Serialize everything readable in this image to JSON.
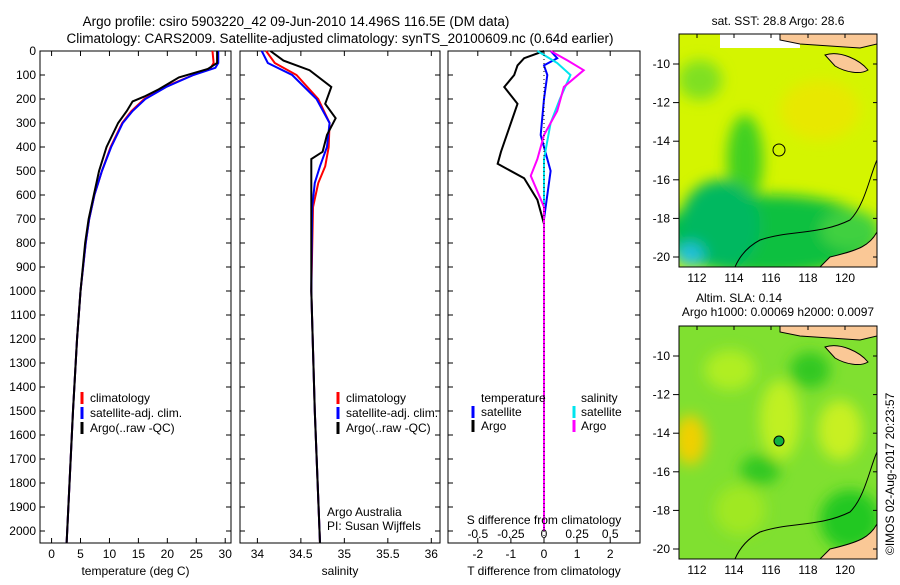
{
  "title_line1": "Argo profile: csiro 5903220_42 09-Jun-2010 14.496S 116.5E (DM data)",
  "title_line2": "Climatology: CARS2009. Satellite-adjusted climatology: synTS_20100609.nc (0.64d earlier)",
  "colors": {
    "climatology": "#ff0000",
    "satellite": "#0000ff",
    "argo": "#000000",
    "sal_satellite": "#00e5ee",
    "sal_argo": "#ff00ff"
  },
  "chart_data": [
    {
      "type": "line",
      "name": "temperature",
      "xlabel": "temperature (deg C)",
      "ylabel": "",
      "xlim": [
        -2,
        31
      ],
      "ylim": [
        2050,
        0
      ],
      "xticks": [
        0,
        5,
        10,
        15,
        20,
        25,
        30
      ],
      "yticks": [
        0,
        100,
        200,
        300,
        400,
        500,
        600,
        700,
        800,
        900,
        1000,
        1100,
        1200,
        1300,
        1400,
        1500,
        1600,
        1700,
        1800,
        1900,
        2000
      ],
      "legend": [
        "climatology",
        "satellite-adj. clim.",
        "Argo(..raw -QC)"
      ],
      "legend_position": "lower-center",
      "series": [
        {
          "name": "climatology",
          "color": "#ff0000",
          "points": [
            [
              27.8,
              0
            ],
            [
              28,
              50
            ],
            [
              27.5,
              70
            ],
            [
              24.5,
              100
            ],
            [
              19.5,
              150
            ],
            [
              16,
              200
            ],
            [
              13.8,
              250
            ],
            [
              12.2,
              300
            ],
            [
              10.2,
              400
            ],
            [
              8.7,
              500
            ],
            [
              7.4,
              600
            ],
            [
              6.5,
              700
            ],
            [
              5.9,
              800
            ],
            [
              5.0,
              1000
            ],
            [
              4.4,
              1200
            ],
            [
              3.7,
              1500
            ],
            [
              3.1,
              1800
            ],
            [
              2.6,
              2050
            ]
          ]
        },
        {
          "name": "satellite-adj. clim.",
          "color": "#0000ff",
          "points": [
            [
              28.8,
              0
            ],
            [
              28.8,
              50
            ],
            [
              28.3,
              70
            ],
            [
              24.5,
              100
            ],
            [
              19.8,
              150
            ],
            [
              16.2,
              200
            ],
            [
              14,
              250
            ],
            [
              12.3,
              300
            ],
            [
              10.3,
              400
            ],
            [
              8.7,
              500
            ],
            [
              7.4,
              600
            ],
            [
              6.5,
              700
            ],
            [
              5.9,
              800
            ],
            [
              5.0,
              1000
            ],
            [
              4.4,
              1200
            ],
            [
              3.7,
              1500
            ],
            [
              3.1,
              1800
            ],
            [
              2.6,
              2050
            ]
          ]
        },
        {
          "name": "Argo(..raw -QC)",
          "color": "#000000",
          "points": [
            [
              28.6,
              0
            ],
            [
              28.6,
              50
            ],
            [
              27,
              75
            ],
            [
              22,
              110
            ],
            [
              18.5,
              160
            ],
            [
              16,
              190
            ],
            [
              14,
              210
            ],
            [
              13,
              250
            ],
            [
              11.5,
              300
            ],
            [
              9.5,
              400
            ],
            [
              8.2,
              500
            ],
            [
              7.3,
              600
            ],
            [
              6.4,
              700
            ],
            [
              5.8,
              800
            ],
            [
              5.0,
              1000
            ],
            [
              4.4,
              1200
            ],
            [
              3.7,
              1500
            ],
            [
              3.1,
              1800
            ],
            [
              2.6,
              2050
            ]
          ]
        }
      ]
    },
    {
      "type": "line",
      "name": "salinity",
      "xlabel": "salinity",
      "xlim": [
        33.8,
        36.1
      ],
      "ylim": [
        2050,
        0
      ],
      "xticks": [
        34,
        34.5,
        35,
        35.5,
        36
      ],
      "legend": [
        "climatology",
        "satellite-adj. clim.",
        "Argo(..raw -QC)"
      ],
      "annotation": [
        "Argo Australia",
        "PI: Susan Wijffels"
      ],
      "series": [
        {
          "name": "climatology",
          "color": "#ff0000",
          "points": [
            [
              34.1,
              0
            ],
            [
              34.2,
              50
            ],
            [
              34.45,
              100
            ],
            [
              34.7,
              200
            ],
            [
              34.83,
              300
            ],
            [
              34.82,
              400
            ],
            [
              34.78,
              480
            ],
            [
              34.7,
              550
            ],
            [
              34.64,
              650
            ],
            [
              34.62,
              1000
            ],
            [
              34.66,
              1500
            ],
            [
              34.72,
              2050
            ]
          ]
        },
        {
          "name": "satellite-adj. clim.",
          "color": "#0000ff",
          "points": [
            [
              34.05,
              0
            ],
            [
              34.12,
              50
            ],
            [
              34.4,
              100
            ],
            [
              34.68,
              200
            ],
            [
              34.83,
              300
            ],
            [
              34.8,
              400
            ],
            [
              34.72,
              480
            ],
            [
              34.66,
              550
            ],
            [
              34.63,
              650
            ],
            [
              34.62,
              1000
            ],
            [
              34.66,
              1500
            ],
            [
              34.72,
              2050
            ]
          ]
        },
        {
          "name": "Argo(..raw -QC)",
          "color": "#000000",
          "points": [
            [
              34.15,
              0
            ],
            [
              34.3,
              40
            ],
            [
              34.6,
              80
            ],
            [
              34.85,
              150
            ],
            [
              34.78,
              220
            ],
            [
              34.9,
              280
            ],
            [
              34.8,
              350
            ],
            [
              34.75,
              420
            ],
            [
              34.62,
              450
            ],
            [
              34.62,
              600
            ],
            [
              34.62,
              1000
            ],
            [
              34.66,
              1500
            ],
            [
              34.72,
              2050
            ]
          ]
        }
      ]
    },
    {
      "type": "line",
      "name": "difference",
      "xlabel": "T difference from climatology",
      "x2label": "S difference from climatology",
      "xlim": [
        -2.9,
        2.9
      ],
      "x2lim": [
        -0.725,
        0.725
      ],
      "ylim": [
        2050,
        0
      ],
      "xticks": [
        -2,
        -1,
        0,
        1,
        2
      ],
      "x2ticks": [
        -0.5,
        -0.25,
        0,
        0.25,
        0.5
      ],
      "x2ticklabels": [
        "-0.5",
        "-0.25",
        "0",
        "0.25",
        "0.5"
      ],
      "legend_temperature": {
        "title": "temperature",
        "items": [
          "satellite",
          "Argo"
        ]
      },
      "legend_salinity": {
        "title": "salinity",
        "items": [
          "satellite",
          "Argo"
        ]
      },
      "series": [
        {
          "name": "T satellite",
          "axis": "T",
          "color": "#0000ff",
          "points": [
            [
              0.2,
              0
            ],
            [
              0.4,
              30
            ],
            [
              0,
              60
            ],
            [
              0.1,
              100
            ],
            [
              0,
              200
            ],
            [
              -0.1,
              350
            ],
            [
              0.2,
              500
            ],
            [
              0,
              700
            ],
            [
              0,
              2000
            ]
          ]
        },
        {
          "name": "T Argo",
          "axis": "T",
          "color": "#000000",
          "points": [
            [
              0,
              0
            ],
            [
              -0.6,
              30
            ],
            [
              -0.8,
              60
            ],
            [
              -0.9,
              100
            ],
            [
              -1.2,
              150
            ],
            [
              -0.8,
              220
            ],
            [
              -1.0,
              300
            ],
            [
              -1.2,
              380
            ],
            [
              -1.3,
              420
            ],
            [
              -1.4,
              470
            ],
            [
              -0.6,
              530
            ],
            [
              -0.2,
              620
            ],
            [
              0,
              720
            ],
            [
              0,
              2000
            ]
          ]
        },
        {
          "name": "S satellite",
          "axis": "S",
          "color": "#00e5ee",
          "points": [
            [
              -0.05,
              0
            ],
            [
              0.1,
              50
            ],
            [
              0.2,
              100
            ],
            [
              0.12,
              200
            ],
            [
              0.05,
              300
            ],
            [
              0,
              450
            ],
            [
              0,
              2000
            ]
          ]
        },
        {
          "name": "S Argo",
          "axis": "S",
          "color": "#ff00ff",
          "points": [
            [
              0.05,
              0
            ],
            [
              0.18,
              40
            ],
            [
              0.3,
              80
            ],
            [
              0.15,
              150
            ],
            [
              0.1,
              250
            ],
            [
              0,
              350
            ],
            [
              -0.05,
              450
            ],
            [
              -0.1,
              520
            ],
            [
              0,
              650
            ],
            [
              0,
              2000
            ]
          ]
        }
      ]
    }
  ],
  "map_sst": {
    "title": "sat. SST: 28.8 Argo: 28.6",
    "xticks": [
      "112",
      "114",
      "116",
      "118",
      "120"
    ],
    "yticks": [
      "-10",
      "-12",
      "-14",
      "-16",
      "-18",
      "-20"
    ]
  },
  "map_sla": {
    "title1": "Altim. SLA: 0.14",
    "title2": "Argo h1000: 0.00069 h2000: 0.0097",
    "xticks": [
      "112",
      "114",
      "116",
      "118",
      "120"
    ],
    "yticks": [
      "-10",
      "-12",
      "-14",
      "-16",
      "-18",
      "-20"
    ]
  },
  "watermark": "©IMOS 02-Aug-2017 20:23:57"
}
